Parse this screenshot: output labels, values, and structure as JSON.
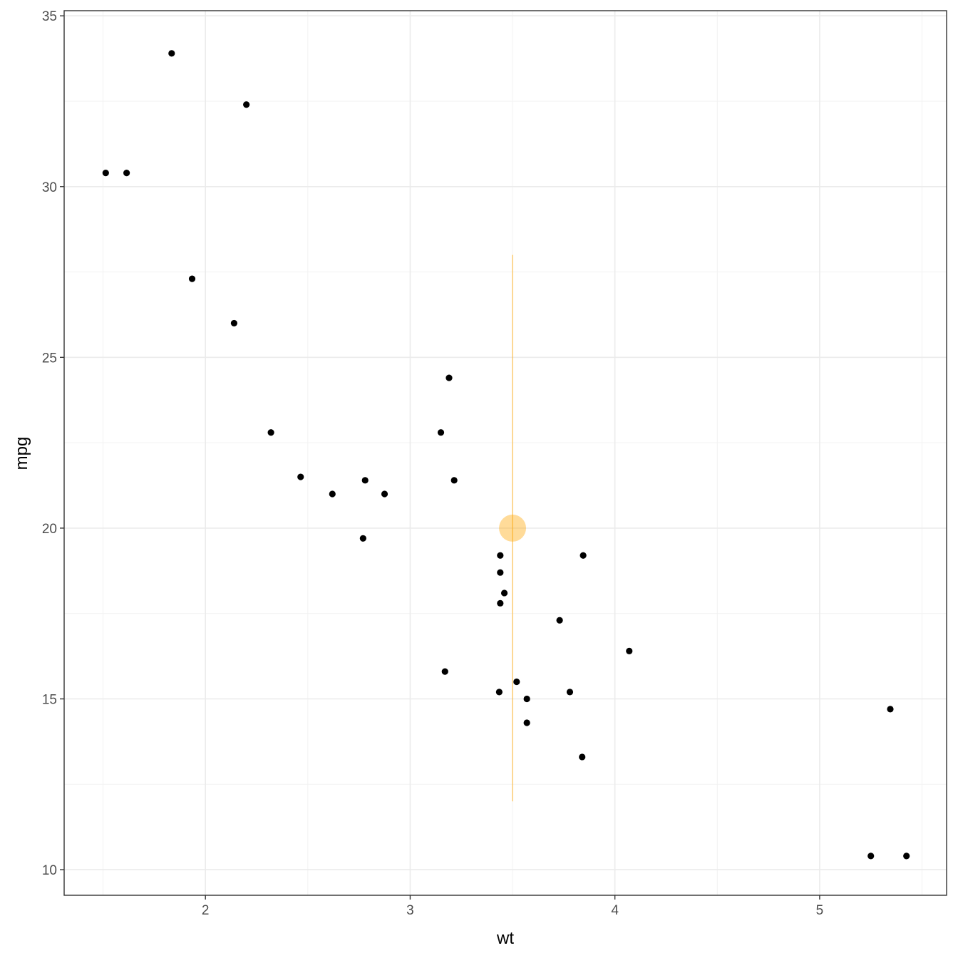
{
  "chart_data": {
    "type": "scatter",
    "title": "",
    "xlabel": "wt",
    "ylabel": "mpg",
    "xlim": [
      1.31,
      5.62
    ],
    "ylim": [
      9.25,
      35.15
    ],
    "x_ticks": [
      2,
      3,
      4,
      5
    ],
    "x_tick_labels": [
      "2",
      "3",
      "4",
      "5"
    ],
    "x_minor_ticks": [
      1.5,
      2.5,
      3.5,
      4.5,
      5.5
    ],
    "y_ticks": [
      10,
      15,
      20,
      25,
      30,
      35
    ],
    "y_tick_labels": [
      "10",
      "15",
      "20",
      "25",
      "30",
      "35"
    ],
    "y_minor_ticks": [
      12.5,
      17.5,
      22.5,
      27.5,
      32.5
    ],
    "grid": true,
    "legend": "none",
    "series": [
      {
        "color": "#000000",
        "points": [
          {
            "x": 2.62,
            "y": 21.0
          },
          {
            "x": 2.875,
            "y": 21.0
          },
          {
            "x": 2.32,
            "y": 22.8
          },
          {
            "x": 3.215,
            "y": 21.4
          },
          {
            "x": 3.44,
            "y": 18.7
          },
          {
            "x": 3.46,
            "y": 18.1
          },
          {
            "x": 3.57,
            "y": 14.3
          },
          {
            "x": 3.19,
            "y": 24.4
          },
          {
            "x": 3.15,
            "y": 22.8
          },
          {
            "x": 3.44,
            "y": 19.2
          },
          {
            "x": 3.44,
            "y": 17.8
          },
          {
            "x": 4.07,
            "y": 16.4
          },
          {
            "x": 3.73,
            "y": 17.3
          },
          {
            "x": 3.78,
            "y": 15.2
          },
          {
            "x": 5.25,
            "y": 10.4
          },
          {
            "x": 5.424,
            "y": 10.4
          },
          {
            "x": 5.345,
            "y": 14.7
          },
          {
            "x": 2.2,
            "y": 32.4
          },
          {
            "x": 1.615,
            "y": 30.4
          },
          {
            "x": 1.835,
            "y": 33.9
          },
          {
            "x": 2.465,
            "y": 21.5
          },
          {
            "x": 3.52,
            "y": 15.5
          },
          {
            "x": 3.435,
            "y": 15.2
          },
          {
            "x": 3.84,
            "y": 13.3
          },
          {
            "x": 3.845,
            "y": 19.2
          },
          {
            "x": 1.935,
            "y": 27.3
          },
          {
            "x": 2.14,
            "y": 26.0
          },
          {
            "x": 1.513,
            "y": 30.4
          },
          {
            "x": 3.17,
            "y": 15.8
          },
          {
            "x": 2.77,
            "y": 19.7
          },
          {
            "x": 3.57,
            "y": 15.0
          },
          {
            "x": 2.78,
            "y": 21.4
          }
        ]
      }
    ],
    "annotations": [
      {
        "type": "segment",
        "x": 3.5,
        "y_from": 12.0,
        "y_to": 28.0,
        "color": "#FFA500",
        "opacity": 0.5
      },
      {
        "type": "point",
        "x": 3.5,
        "y": 20.0,
        "color": "#FFA500",
        "opacity": 0.4
      }
    ]
  }
}
